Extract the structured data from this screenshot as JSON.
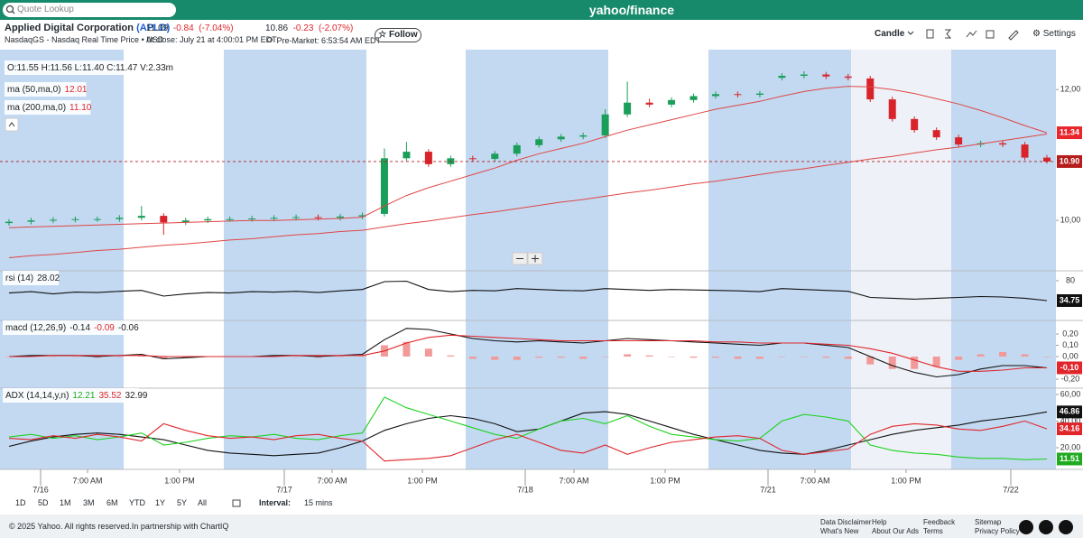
{
  "header": {
    "search_placeholder": "Quote Lookup",
    "logo": "yahoo/finance",
    "company_name": "Applied Digital Corporation",
    "ticker": "(APLD)",
    "exchange_line": "NasdaqGS - Nasdaq Real Time Price • USD",
    "close_price": "11.09",
    "close_change": "-0.84",
    "close_pct": "(-7.04%)",
    "close_time": "At close: July 21 at 4:00:01 PM EDT",
    "pre_price": "10.86",
    "pre_change": "-0.23",
    "pre_pct": "(-2.07%)",
    "pre_time": "Pre-Market: 6:53:54 AM EDT",
    "follow": "Follow"
  },
  "toolbar": {
    "chart_type": "Candle",
    "settings": "Settings"
  },
  "chart_data": [
    {
      "type": "candlestick",
      "legend_ohlc": "O:11.55 H:11.56 L:11.40 C:11.47 V:2.33m",
      "ylim": [
        9.23,
        12.61
      ],
      "yticks": [
        {
          "value": 10,
          "label": "10,00"
        },
        {
          "value": 12,
          "label": "12,00"
        }
      ],
      "up_color": "#1b9e5a",
      "down_color": "#d8232a",
      "open": [
        9.96,
        9.98,
        10.0,
        10.01,
        10.02,
        10.02,
        10.04,
        10.07,
        9.97,
        10.0,
        10.02,
        10.02,
        10.03,
        10.04,
        10.05,
        10.04,
        10.06,
        10.1,
        10.95,
        11.05,
        10.86,
        10.95,
        10.94,
        11.02,
        11.15,
        11.24,
        11.28,
        11.3,
        11.62,
        11.8,
        11.77,
        11.84,
        11.9,
        11.93,
        11.92,
        12.18,
        12.21,
        12.23,
        12.2,
        12.17,
        11.85,
        11.55,
        11.38,
        11.27,
        11.16,
        11.18,
        11.16,
        10.96
      ],
      "high": [
        10.02,
        10.04,
        10.05,
        10.06,
        10.06,
        10.08,
        10.22,
        10.11,
        10.04,
        10.06,
        10.06,
        10.07,
        10.08,
        10.09,
        10.09,
        10.1,
        10.12,
        11.1,
        11.2,
        11.09,
        10.99,
        10.99,
        11.06,
        11.19,
        11.28,
        11.32,
        11.34,
        11.7,
        12.12,
        11.86,
        11.88,
        11.94,
        11.97,
        11.97,
        11.98,
        12.25,
        12.28,
        12.27,
        12.24,
        12.21,
        11.89,
        11.59,
        11.42,
        11.31,
        11.22,
        11.22,
        11.2,
        11.0
      ],
      "low": [
        9.92,
        9.94,
        9.96,
        9.97,
        9.98,
        9.98,
        10.0,
        9.78,
        9.93,
        9.96,
        9.98,
        9.98,
        9.99,
        10.0,
        10.0,
        10.0,
        10.02,
        10.06,
        10.91,
        10.82,
        10.82,
        10.9,
        10.9,
        10.98,
        11.11,
        11.2,
        11.24,
        11.26,
        11.58,
        11.73,
        11.73,
        11.8,
        11.86,
        11.88,
        11.88,
        12.14,
        12.17,
        12.16,
        12.14,
        11.81,
        11.51,
        11.34,
        11.23,
        11.12,
        11.12,
        11.12,
        10.92,
        10.87
      ],
      "close": [
        9.98,
        10.0,
        10.01,
        10.02,
        10.02,
        10.04,
        10.07,
        9.97,
        10.0,
        10.02,
        10.02,
        10.03,
        10.04,
        10.05,
        10.04,
        10.06,
        10.08,
        10.95,
        11.05,
        10.86,
        10.95,
        10.94,
        11.02,
        11.15,
        11.24,
        11.28,
        11.3,
        11.62,
        11.8,
        11.77,
        11.84,
        11.9,
        11.93,
        11.92,
        11.94,
        12.21,
        12.23,
        12.2,
        12.18,
        11.85,
        11.55,
        11.38,
        11.27,
        11.16,
        11.18,
        11.16,
        10.96,
        10.9
      ],
      "series": [
        {
          "name": "ma (50,ma,0)",
          "value_text": "12.01",
          "color": "#e04646",
          "values": [
            9.89,
            9.9,
            9.91,
            9.92,
            9.93,
            9.94,
            9.95,
            9.96,
            9.97,
            9.98,
            9.99,
            10.0,
            10.0,
            10.01,
            10.02,
            10.03,
            10.05,
            10.22,
            10.38,
            10.5,
            10.6,
            10.7,
            10.8,
            10.92,
            11.02,
            11.1,
            11.18,
            11.28,
            11.38,
            11.46,
            11.54,
            11.62,
            11.7,
            11.76,
            11.82,
            11.9,
            11.97,
            12.02,
            12.05,
            12.04,
            12.0,
            11.94,
            11.86,
            11.78,
            11.68,
            11.57,
            11.45,
            11.34
          ]
        },
        {
          "name": "ma (200,ma,0)",
          "value_text": "11.10",
          "color": "#e04646",
          "values": [
            9.43,
            9.46,
            9.48,
            9.51,
            9.54,
            9.56,
            9.59,
            9.62,
            9.64,
            9.67,
            9.7,
            9.72,
            9.75,
            9.78,
            9.8,
            9.83,
            9.85,
            9.9,
            9.95,
            9.99,
            10.04,
            10.09,
            10.13,
            10.18,
            10.23,
            10.28,
            10.32,
            10.37,
            10.42,
            10.46,
            10.51,
            10.56,
            10.6,
            10.65,
            10.7,
            10.75,
            10.79,
            10.84,
            10.89,
            10.94,
            10.98,
            11.03,
            11.08,
            11.12,
            11.17,
            11.22,
            11.27,
            11.32
          ]
        }
      ],
      "price_labels": [
        {
          "value": 11.34,
          "label": "11.34",
          "color": "#e8262b"
        },
        {
          "value": 10.9,
          "label": "10.90",
          "color": "#b51c1c",
          "dashed": true
        }
      ]
    },
    {
      "type": "line",
      "legend": {
        "label": "rsi (14)",
        "values": [
          {
            "text": "28.02",
            "color": "#222222"
          }
        ]
      },
      "ylim": [
        -10.5,
        102.6
      ],
      "yticks": [
        80
      ],
      "series": [
        {
          "color": "#111111",
          "values": [
            52,
            55,
            50,
            54,
            53,
            56,
            58,
            45,
            50,
            53,
            52,
            55,
            54,
            56,
            53,
            57,
            60,
            78,
            79,
            60,
            55,
            58,
            57,
            62,
            60,
            58,
            57,
            62,
            60,
            58,
            60,
            59,
            58,
            57,
            55,
            62,
            60,
            58,
            56,
            42,
            40,
            38,
            40,
            42,
            44,
            43,
            40,
            34.75
          ]
        }
      ],
      "last_labels": [
        {
          "value": 34.75,
          "label": "34.75",
          "color": "#111111"
        }
      ]
    },
    {
      "type": "line",
      "legend": {
        "label": "macd (12,26,9)",
        "values": [
          {
            "text": "-0.14",
            "color": "#222222"
          },
          {
            "text": "-0.09",
            "color": "#e0262b"
          },
          {
            "text": "-0.06",
            "color": "#222222"
          }
        ]
      },
      "ylim": [
        -0.28,
        0.32
      ],
      "yticks": [
        {
          "value": 0.2,
          "label": "0,20"
        },
        {
          "value": 0.1,
          "label": "0,10"
        },
        {
          "value": 0,
          "label": "0,00"
        },
        {
          "value": -0.2,
          "label": "-0,20"
        }
      ],
      "series": [
        {
          "kind": "histogram",
          "up_color": "#f29a9a",
          "down_color": "#f29a9a",
          "values": [
            0,
            0.01,
            0,
            0,
            -0.01,
            0,
            0.01,
            -0.02,
            -0.01,
            0,
            0,
            0,
            0.01,
            0,
            -0.01,
            0,
            0.01,
            0.1,
            0.13,
            0.07,
            0.01,
            -0.02,
            -0.03,
            -0.03,
            -0.01,
            -0.01,
            -0.02,
            0,
            0.02,
            0.01,
            0,
            -0.01,
            -0.01,
            -0.02,
            -0.02,
            0,
            0,
            -0.01,
            -0.02,
            -0.07,
            -0.11,
            -0.11,
            -0.09,
            -0.03,
            0.02,
            0.04,
            0.02,
            0
          ]
        },
        {
          "color": "#111111",
          "values": [
            0,
            0.01,
            0.01,
            0.01,
            0,
            0.01,
            0.02,
            -0.02,
            -0.01,
            0,
            0,
            0,
            0.01,
            0.01,
            0,
            0.01,
            0.02,
            0.15,
            0.25,
            0.24,
            0.2,
            0.16,
            0.14,
            0.13,
            0.14,
            0.13,
            0.12,
            0.14,
            0.16,
            0.15,
            0.14,
            0.13,
            0.12,
            0.11,
            0.1,
            0.12,
            0.12,
            0.1,
            0.08,
            0.0,
            -0.08,
            -0.14,
            -0.18,
            -0.16,
            -0.11,
            -0.08,
            -0.08,
            -0.1
          ]
        },
        {
          "color": "#e0262b",
          "values": [
            0,
            0,
            0.01,
            0.01,
            0.01,
            0.01,
            0.01,
            0,
            0,
            0,
            0,
            0,
            0,
            0.01,
            0.01,
            0.01,
            0.01,
            0.05,
            0.12,
            0.17,
            0.19,
            0.18,
            0.17,
            0.16,
            0.15,
            0.14,
            0.14,
            0.14,
            0.14,
            0.14,
            0.14,
            0.14,
            0.13,
            0.13,
            0.12,
            0.12,
            0.12,
            0.11,
            0.1,
            0.07,
            0.03,
            -0.03,
            -0.09,
            -0.13,
            -0.13,
            -0.12,
            -0.1,
            -0.1
          ]
        }
      ],
      "last_labels": [
        {
          "value": -0.1,
          "label": "-0,10",
          "color": "#e0262b"
        }
      ]
    },
    {
      "type": "line",
      "legend": {
        "label": "ADX (14,14,y,n)",
        "values": [
          {
            "text": "12.21",
            "color": "#1faa1f"
          },
          {
            "text": "35.52",
            "color": "#e0262b"
          },
          {
            "text": "32.99",
            "color": "#222222"
          }
        ]
      },
      "ylim": [
        3.7,
        64.7
      ],
      "yticks": [
        {
          "value": 60,
          "label": "60,00"
        },
        {
          "value": 40,
          "label": "40,00"
        },
        {
          "value": 20,
          "label": "20,00"
        }
      ],
      "series": [
        {
          "color": "#111111",
          "values": [
            21,
            25,
            28,
            30,
            31,
            30,
            28,
            26,
            22,
            18,
            16,
            15,
            14,
            15,
            16,
            20,
            25,
            33,
            38,
            42,
            44,
            42,
            38,
            32,
            34,
            40,
            46,
            47,
            45,
            40,
            35,
            30,
            26,
            22,
            18,
            16,
            15,
            18,
            22,
            26,
            30,
            33,
            35,
            37,
            40,
            42,
            44,
            46.86
          ]
        },
        {
          "color": "#1fd21f",
          "values": [
            28,
            30,
            27,
            29,
            26,
            28,
            31,
            22,
            24,
            27,
            29,
            28,
            30,
            27,
            26,
            29,
            31,
            58,
            50,
            45,
            40,
            35,
            30,
            27,
            34,
            40,
            42,
            38,
            44,
            36,
            30,
            28,
            26,
            25,
            27,
            40,
            45,
            43,
            40,
            22,
            18,
            16,
            15,
            13,
            12,
            12,
            11,
            11.51
          ]
        },
        {
          "color": "#e0262b",
          "values": [
            27,
            26,
            29,
            27,
            30,
            28,
            25,
            38,
            33,
            29,
            27,
            28,
            26,
            29,
            30,
            27,
            25,
            10,
            11,
            12,
            14,
            20,
            26,
            30,
            24,
            18,
            16,
            22,
            15,
            20,
            24,
            26,
            28,
            29,
            27,
            18,
            15,
            17,
            19,
            30,
            36,
            38,
            37,
            34,
            33,
            36,
            40,
            34.16
          ]
        }
      ],
      "last_labels": [
        {
          "value": 46.86,
          "label": "46.86",
          "color": "#111111"
        },
        {
          "value": 34.16,
          "label": "34.16",
          "color": "#e0262b"
        },
        {
          "value": 11.51,
          "label": "11.51",
          "color": "#1faa1f"
        }
      ]
    }
  ],
  "x_labels": [
    "7/16",
    "7:00 AM",
    "1:00 PM",
    "7/17",
    "7:00 AM",
    "1:00 PM",
    "7/18",
    "7:00 AM",
    "1:00 PM",
    "7/21",
    "7:00 AM",
    "1:00 PM",
    "7/22"
  ],
  "range": {
    "buttons": [
      "1D",
      "5D",
      "1M",
      "3M",
      "6M",
      "YTD",
      "1Y",
      "5Y",
      "All"
    ],
    "interval_label": "Interval:",
    "interval": "15 mins"
  },
  "footer": {
    "copyright": "© 2025 Yahoo. All rights reserved.In partnership with ChartIQ",
    "links": [
      "Data Disclaimer",
      "What's New",
      "Help",
      "About Our Ads",
      "Feedback",
      "Terms",
      "Sitemap",
      "Privacy Policy"
    ]
  }
}
